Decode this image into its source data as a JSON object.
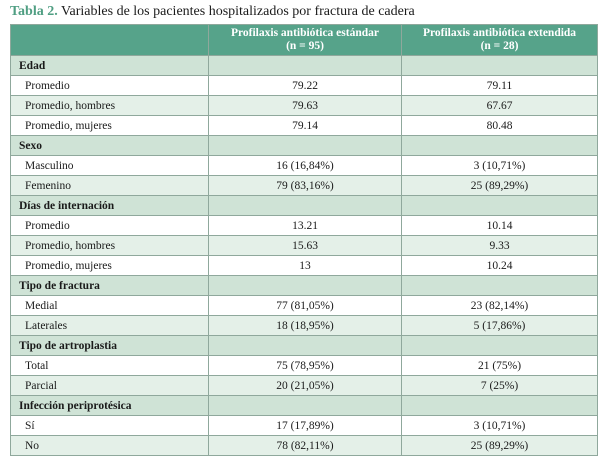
{
  "caption": {
    "number": "Tabla 2.",
    "text": " Variables de los pacientes hospitalizados por fractura de cadera"
  },
  "header": {
    "col2_line1": "Profilaxis antibiótica estándar",
    "col2_line2": "(n = 95)",
    "col3_line1": "Profilaxis antibiótica extendida",
    "col3_line2": "(n = 28)"
  },
  "sections": [
    {
      "title": "Edad",
      "rows": [
        {
          "label": "Promedio",
          "std": "79.22",
          "ext": "79.11"
        },
        {
          "label": "Promedio, hombres",
          "std": "79.63",
          "ext": "67.67"
        },
        {
          "label": "Promedio, mujeres",
          "std": "79.14",
          "ext": "80.48"
        }
      ]
    },
    {
      "title": "Sexo",
      "rows": [
        {
          "label": "Masculino",
          "std": "16 (16,84%)",
          "ext": "3 (10,71%)"
        },
        {
          "label": "Femenino",
          "std": "79 (83,16%)",
          "ext": "25 (89,29%)"
        }
      ]
    },
    {
      "title": "Días de internación",
      "rows": [
        {
          "label": "Promedio",
          "std": "13.21",
          "ext": "10.14"
        },
        {
          "label": "Promedio, hombres",
          "std": "15.63",
          "ext": "9.33"
        },
        {
          "label": "Promedio, mujeres",
          "std": "13",
          "ext": "10.24"
        }
      ]
    },
    {
      "title": "Tipo de fractura",
      "rows": [
        {
          "label": "Medial",
          "std": "77 (81,05%)",
          "ext": "23 (82,14%)"
        },
        {
          "label": "Laterales",
          "std": "18 (18,95%)",
          "ext": "5 (17,86%)"
        }
      ]
    },
    {
      "title": "Tipo de artroplastia",
      "rows": [
        {
          "label": "Total",
          "std": "75 (78,95%)",
          "ext": "21 (75%)"
        },
        {
          "label": "Parcial",
          "std": "20 (21,05%)",
          "ext": "7 (25%)"
        }
      ]
    },
    {
      "title": "Infección periprotésica",
      "rows": [
        {
          "label": "Sí",
          "std": "17 (17,89%)",
          "ext": "3 (10,71%)"
        },
        {
          "label": "No",
          "std": "78 (82,11%)",
          "ext": "25 (89,29%)"
        }
      ]
    }
  ]
}
